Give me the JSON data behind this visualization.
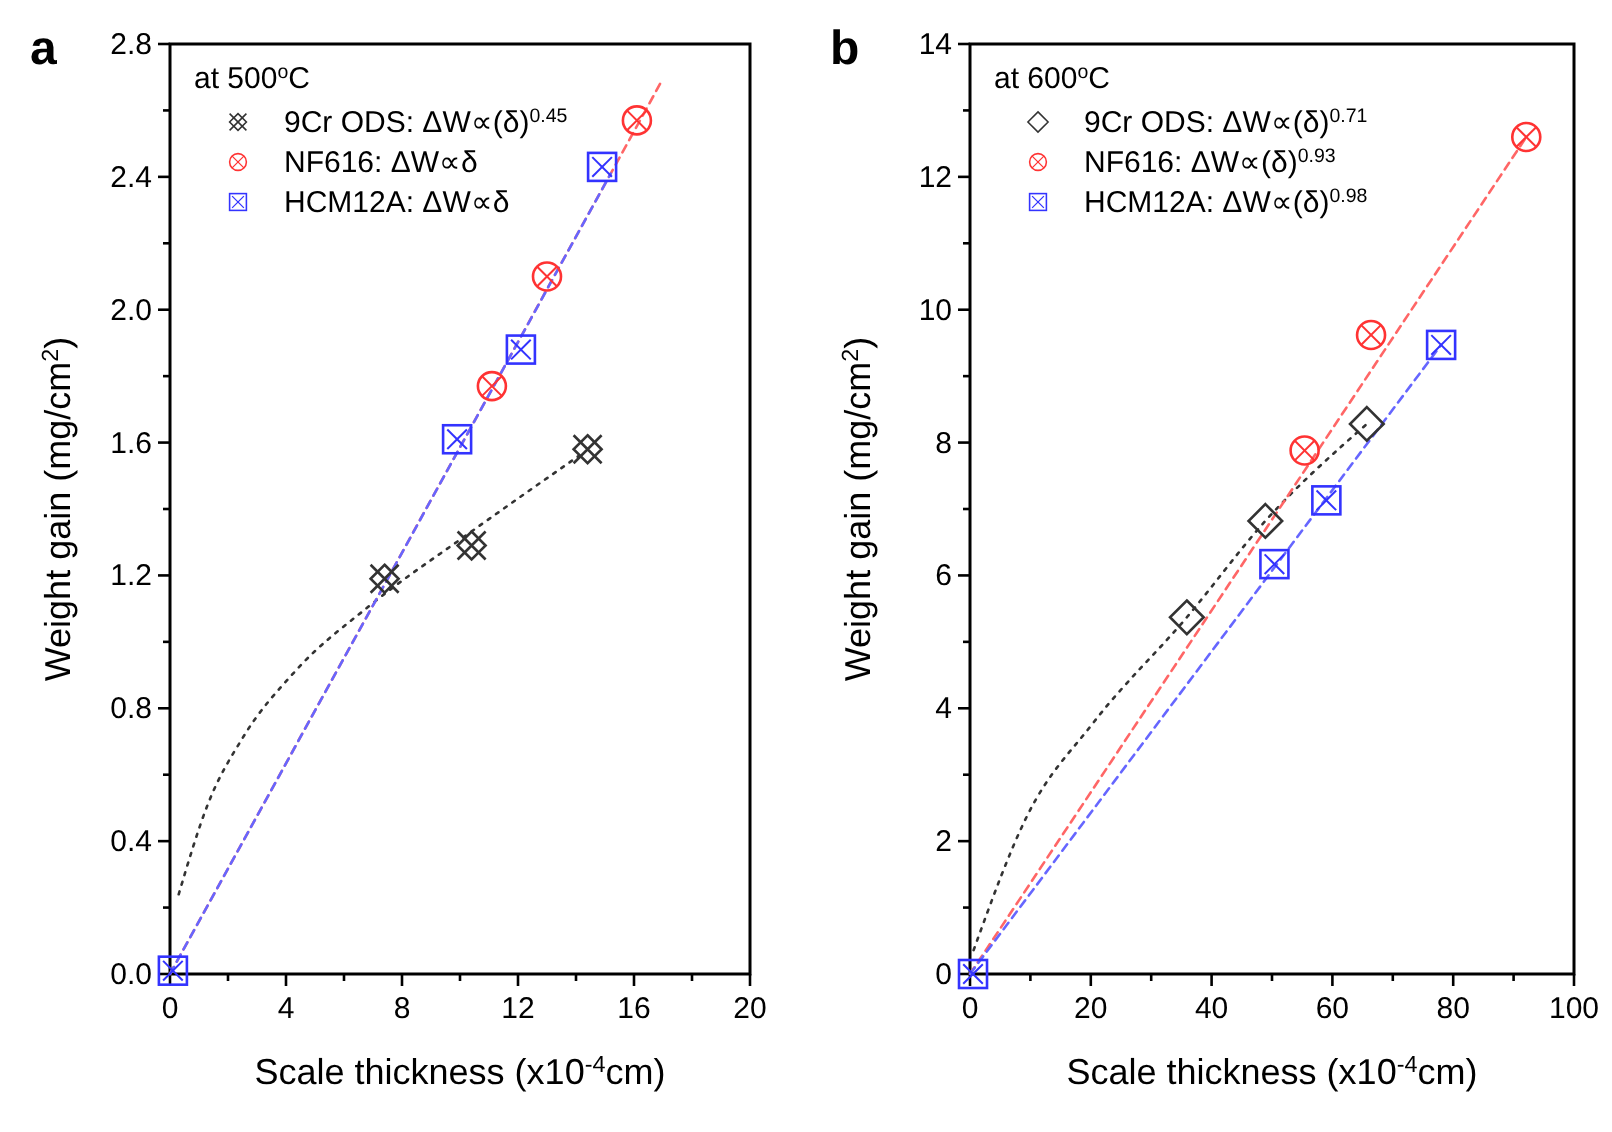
{
  "chart_data": [
    {
      "type": "scatter",
      "title": "a",
      "xlabel": "Scale thickness (x10$^{-4}$cm)",
      "ylabel": "Weight gain (mg/cm$^{2}$)",
      "legend_title": "at 500$^{o}$C",
      "legend": "top left",
      "xlim": [
        0,
        20
      ],
      "ylim": [
        0,
        2.8
      ],
      "xticks": [
        0,
        {
          "value": 2,
          "label": null
        },
        4,
        {
          "value": 6,
          "label": null
        },
        8,
        {
          "value": 10,
          "label": null
        },
        12,
        {
          "value": 14,
          "label": null
        },
        16,
        {
          "value": 18,
          "label": null
        },
        20
      ],
      "yticks": [
        {
          "value": 0,
          "label": "0.0"
        },
        {
          "value": 0.2,
          "label": null
        },
        0.4,
        {
          "value": 0.6,
          "label": null
        },
        0.8,
        {
          "value": 1.0,
          "label": null
        },
        1.2,
        {
          "value": 1.4,
          "label": null
        },
        1.6,
        {
          "value": 1.8,
          "label": null
        },
        {
          "value": 2,
          "label": "2.0"
        },
        {
          "value": 2.2,
          "label": null
        },
        2.4,
        {
          "value": 2.6,
          "label": null
        },
        2.8
      ],
      "series": [
        {
          "name": "9Cr ODS: ΔW∝(δ)$^{0.45}$",
          "color": "#333333",
          "marker": "cross",
          "x": [
            7.4,
            10.4,
            14.4
          ],
          "values": [
            1.19,
            1.29,
            1.58
          ]
        },
        {
          "name": "NF616: ΔW∝δ",
          "color": "#ff3333",
          "marker": "circle",
          "x": [
            11.1,
            13.0,
            16.1
          ],
          "values": [
            1.77,
            2.1,
            2.57
          ]
        },
        {
          "name": "HCM12A: ΔW∝δ",
          "color": "#3333ff",
          "marker": "square",
          "x": [
            0.1,
            9.9,
            12.1,
            14.9
          ],
          "values": [
            0.01,
            1.61,
            1.88,
            2.43
          ]
        },
        {
          "type": "line",
          "color": "#333333",
          "line_style": "dotted",
          "x": [
            0.3,
            1.3,
            2.5,
            4.3,
            6.9,
            10.2,
            14.1
          ],
          "values": [
            0.24,
            0.51,
            0.71,
            0.91,
            1.11,
            1.32,
            1.56
          ]
        },
        {
          "type": "line",
          "color": "#ff6666",
          "line_style": "dashed",
          "x": [
            0,
            16.9
          ],
          "values": [
            0,
            2.68
          ]
        },
        {
          "type": "line",
          "color": "#6666ff",
          "line_style": "dashed",
          "x": [
            0,
            15.2
          ],
          "values": [
            0,
            2.41
          ]
        }
      ]
    },
    {
      "type": "scatter",
      "title": "b",
      "xlabel": "Scale thickness (x10$^{-4}$cm)",
      "ylabel": "Weight gain (mg/cm$^{2}$)",
      "legend_title": "at 600$^{o}$C",
      "legend": "top left",
      "xlim": [
        0,
        100
      ],
      "ylim": [
        0,
        14
      ],
      "xticks": [
        0,
        {
          "value": 10,
          "label": null
        },
        20,
        {
          "value": 30,
          "label": null
        },
        40,
        {
          "value": 50,
          "label": null
        },
        60,
        {
          "value": 70,
          "label": null
        },
        80,
        {
          "value": 90,
          "label": null
        },
        100
      ],
      "yticks": [
        0,
        {
          "value": 1,
          "label": null
        },
        2,
        {
          "value": 3,
          "label": null
        },
        4,
        {
          "value": 5,
          "label": null
        },
        6,
        {
          "value": 7,
          "label": null
        },
        8,
        {
          "value": 9,
          "label": null
        },
        10,
        {
          "value": 11,
          "label": null
        },
        12,
        {
          "value": 13,
          "label": null
        },
        14
      ],
      "series": [
        {
          "name": "9Cr ODS: ΔW∝(δ)$^{0.71}$",
          "color": "#333333",
          "marker": "diamond",
          "x": [
            35.9,
            48.9,
            65.7
          ],
          "values": [
            5.37,
            6.82,
            8.28
          ]
        },
        {
          "name": "NF616: ΔW∝(δ)$^{0.93}$",
          "color": "#ff3333",
          "marker": "circle",
          "x": [
            55.4,
            66.4,
            92.1
          ],
          "values": [
            7.88,
            9.62,
            12.6
          ]
        },
        {
          "name": "HCM12A: ΔW∝(δ)$^{0.98}$",
          "color": "#3333ff",
          "marker": "square",
          "x": [
            0.5,
            50.4,
            59.0,
            78.0
          ],
          "values": [
            0,
            6.17,
            7.13,
            9.47
          ]
        },
        {
          "type": "line",
          "color": "#333333",
          "line_style": "dotted",
          "x": [
            0.6,
            9.4,
            20.4,
            35.9,
            48.9,
            65.7
          ],
          "values": [
            0.36,
            2.37,
            3.78,
            5.37,
            6.82,
            8.28
          ]
        },
        {
          "type": "line",
          "color": "#ff6666",
          "line_style": "dashed",
          "x": [
            0,
            92.1
          ],
          "values": [
            0,
            12.6
          ]
        },
        {
          "type": "line",
          "color": "#6666ff",
          "line_style": "dashed",
          "x": [
            0,
            78.0
          ],
          "values": [
            0,
            9.47
          ]
        }
      ]
    }
  ]
}
